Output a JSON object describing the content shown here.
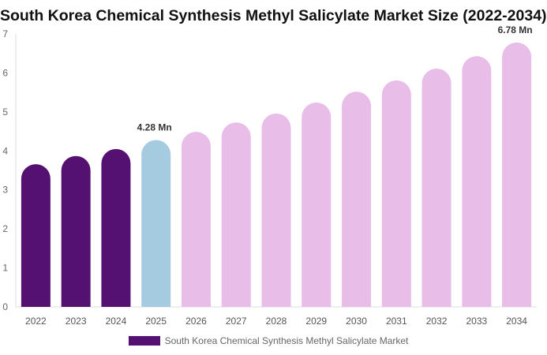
{
  "chart_data": {
    "type": "bar",
    "title": "South Korea Chemical Synthesis Methyl Salicylate Market Size (2022-2034)",
    "categories": [
      "2022",
      "2023",
      "2024",
      "2025",
      "2026",
      "2027",
      "2028",
      "2029",
      "2030",
      "2031",
      "2032",
      "2033",
      "2034"
    ],
    "series": [
      {
        "name": "South Korea Chemical Synthesis Methyl Salicylate Market",
        "values": [
          3.66,
          3.87,
          4.05,
          4.28,
          4.49,
          4.73,
          4.96,
          5.24,
          5.52,
          5.81,
          6.11,
          6.43,
          6.78
        ]
      }
    ],
    "data_labels": {
      "2025": "4.28 Mn",
      "2034": "6.78 Mn"
    },
    "ylim": [
      0,
      7
    ],
    "yticks": [
      0,
      1,
      2,
      3,
      4,
      5,
      6,
      7
    ],
    "colors": {
      "historical": "#541171",
      "current": "#a5cbe0",
      "forecast": "#e8bde8"
    },
    "color_groups": [
      "historical",
      "historical",
      "historical",
      "current",
      "forecast",
      "forecast",
      "forecast",
      "forecast",
      "forecast",
      "forecast",
      "forecast",
      "forecast",
      "forecast"
    ],
    "legend_placement": "bottom",
    "grid": false
  }
}
